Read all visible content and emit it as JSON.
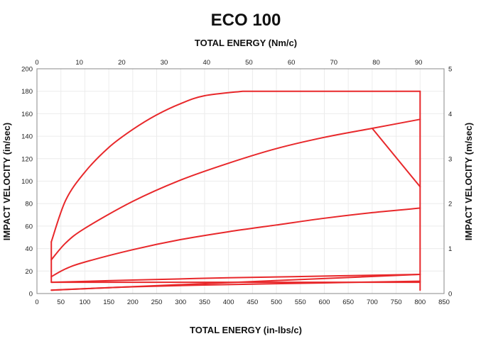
{
  "chart_data": {
    "type": "line",
    "title": "ECO 100",
    "xlabel": "TOTAL ENERGY (in-lbs/c)",
    "x2label": "TOTAL ENERGY (Nm/c)",
    "ylabel": "IMPACT VELOCITY (in/sec)",
    "y2label": "IMPACT VELOCITY (m/sec)",
    "xlim": [
      0,
      850
    ],
    "ylim": [
      0,
      200
    ],
    "x2lim": [
      0,
      96
    ],
    "y2lim": [
      0,
      5
    ],
    "xticks": [
      0,
      50,
      100,
      150,
      200,
      250,
      300,
      350,
      400,
      450,
      500,
      550,
      600,
      650,
      700,
      750,
      800,
      850
    ],
    "yticks": [
      0,
      20,
      40,
      60,
      80,
      100,
      120,
      140,
      160,
      180,
      200
    ],
    "x2ticks": [
      0,
      10,
      20,
      30,
      40,
      50,
      60,
      70,
      80,
      90
    ],
    "y2ticks": [
      0,
      1,
      2,
      3,
      4,
      5
    ],
    "grid": true,
    "series": [
      {
        "points": [
          [
            30,
            46
          ],
          [
            60,
            83
          ],
          [
            100,
            108
          ],
          [
            150,
            130
          ],
          [
            200,
            146
          ],
          [
            250,
            159
          ],
          [
            300,
            169
          ],
          [
            350,
            176
          ],
          [
            430,
            180
          ],
          [
            800,
            180
          ]
        ]
      },
      {
        "points": [
          [
            30,
            30
          ],
          [
            60,
            45
          ],
          [
            100,
            58
          ],
          [
            200,
            82
          ],
          [
            300,
            101
          ],
          [
            400,
            116
          ],
          [
            500,
            129
          ],
          [
            600,
            139
          ],
          [
            700,
            147
          ],
          [
            800,
            155
          ]
        ]
      },
      {
        "points": [
          [
            30,
            15
          ],
          [
            60,
            22
          ],
          [
            100,
            28
          ],
          [
            200,
            39
          ],
          [
            300,
            48
          ],
          [
            400,
            55
          ],
          [
            500,
            61
          ],
          [
            600,
            67
          ],
          [
            700,
            72
          ],
          [
            800,
            76
          ]
        ]
      },
      {
        "points": [
          [
            30,
            10
          ],
          [
            200,
            12
          ],
          [
            400,
            14
          ],
          [
            600,
            15.5
          ],
          [
            800,
            17
          ]
        ]
      },
      {
        "points": [
          [
            30,
            3
          ],
          [
            200,
            6
          ],
          [
            400,
            8
          ],
          [
            600,
            9.5
          ],
          [
            800,
            11
          ]
        ]
      },
      {
        "points": [
          [
            800,
            180
          ],
          [
            800,
            3
          ]
        ]
      },
      {
        "points": [
          [
            30,
            46
          ],
          [
            30,
            10
          ],
          [
            800,
            10
          ]
        ]
      },
      {
        "points": [
          [
            30,
            3
          ],
          [
            800,
            17
          ]
        ]
      },
      {
        "points": [
          [
            700,
            147
          ],
          [
            800,
            95
          ]
        ]
      }
    ]
  }
}
